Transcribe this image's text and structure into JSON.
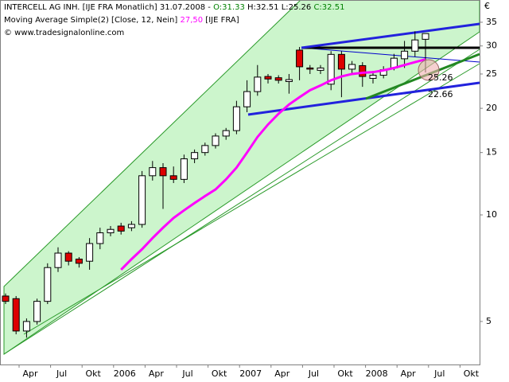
{
  "chart_data": {
    "type": "candlestick",
    "title": "INTERCELL AG INH. [IJE FRA  Monatlich] 31.07.2008 -",
    "header_quote": [
      "O:31.33",
      "H:32.51 L:25.26",
      "C:32.51"
    ],
    "source": "© www.tradesignalonline.com",
    "currency": "€",
    "log_scale": true,
    "up_color": "#ffffff",
    "down_color": "#dd0000",
    "categories": [
      null,
      null,
      "Apr",
      null,
      null,
      "Jul",
      null,
      null,
      "Okt",
      null,
      null,
      "2006",
      null,
      null,
      "Apr",
      null,
      null,
      "Jul",
      null,
      null,
      "Okt",
      null,
      null,
      "2007",
      null,
      null,
      "Apr",
      null,
      null,
      "Jul",
      null,
      null,
      "Okt",
      null,
      null,
      "2008",
      null,
      null,
      "Apr",
      null,
      null,
      "Jul",
      null,
      null,
      "Okt"
    ],
    "open": [
      5.9,
      5.8,
      4.7,
      5.0,
      5.7,
      7.1,
      7.8,
      7.5,
      7.4,
      8.3,
      8.9,
      9.3,
      9.2,
      9.4,
      12.9,
      13.6,
      12.9,
      12.6,
      14.4,
      15.0,
      15.7,
      16.7,
      17.3,
      20.2,
      22.3,
      24.6,
      24.4,
      23.8,
      29.2,
      26.0,
      25.6,
      23.4,
      28.4,
      25.8,
      26.4,
      24.3,
      24.8,
      26.0,
      27.6,
      29.0,
      31.33,
      null,
      null,
      null,
      null
    ],
    "high": [
      6.0,
      5.9,
      5.1,
      5.8,
      7.3,
      8.1,
      7.9,
      7.6,
      8.6,
      9.2,
      9.3,
      9.5,
      9.6,
      13.3,
      14.2,
      14.0,
      13.7,
      14.8,
      15.3,
      16.0,
      17.0,
      17.6,
      21.0,
      24.0,
      26.5,
      25.0,
      24.8,
      25.0,
      29.8,
      26.5,
      26.5,
      29.0,
      29.0,
      27.2,
      27.0,
      25.5,
      26.3,
      28.5,
      31.0,
      33.0,
      32.51,
      null,
      null,
      null,
      null
    ],
    "low": [
      5.6,
      4.6,
      4.5,
      4.9,
      5.6,
      6.9,
      7.2,
      7.1,
      7.0,
      8.0,
      8.7,
      8.8,
      9.0,
      9.2,
      12.5,
      10.4,
      12.3,
      12.3,
      14.0,
      14.7,
      15.4,
      16.3,
      16.9,
      19.5,
      21.7,
      23.5,
      23.5,
      22.0,
      24.0,
      25.0,
      25.0,
      22.5,
      21.5,
      25.0,
      23.0,
      23.5,
      24.3,
      25.6,
      26.0,
      28.0,
      25.26,
      null,
      null,
      null,
      null
    ],
    "close": [
      5.7,
      4.7,
      5.0,
      5.7,
      7.1,
      7.8,
      7.4,
      7.3,
      8.3,
      8.9,
      9.1,
      9.0,
      9.4,
      12.9,
      13.6,
      12.9,
      12.6,
      14.4,
      15.0,
      15.7,
      16.7,
      17.3,
      20.2,
      22.3,
      24.5,
      24.2,
      24.0,
      24.1,
      26.2,
      25.8,
      26.0,
      28.4,
      25.8,
      26.6,
      24.6,
      24.8,
      25.7,
      27.7,
      29.0,
      31.2,
      32.51,
      null,
      null,
      null,
      null
    ],
    "series": [
      {
        "name": "Moving Average Simple(2) [Close, 12, Nein]",
        "color": "#ff00ff",
        "value_label": "27,50",
        "source": "[IJE FRA]",
        "values": [
          null,
          null,
          null,
          null,
          null,
          null,
          null,
          null,
          null,
          null,
          null,
          7.0,
          7.5,
          8.0,
          8.6,
          9.2,
          9.8,
          10.3,
          10.8,
          11.3,
          11.8,
          12.6,
          13.6,
          15.0,
          16.6,
          18.0,
          19.3,
          20.5,
          21.5,
          22.5,
          23.2,
          24.0,
          24.6,
          25.0,
          25.2,
          25.3,
          25.6,
          26.0,
          26.5,
          27.0,
          27.5,
          null,
          null,
          null,
          null
        ]
      }
    ],
    "annotations": [
      {
        "text": "25.26",
        "color": "#008000"
      },
      {
        "text": "22.66",
        "color": "#0000cc"
      }
    ],
    "ylim": [
      3.78,
      40.45
    ],
    "yticks": [
      5,
      10,
      15,
      20,
      25,
      30,
      35
    ]
  }
}
